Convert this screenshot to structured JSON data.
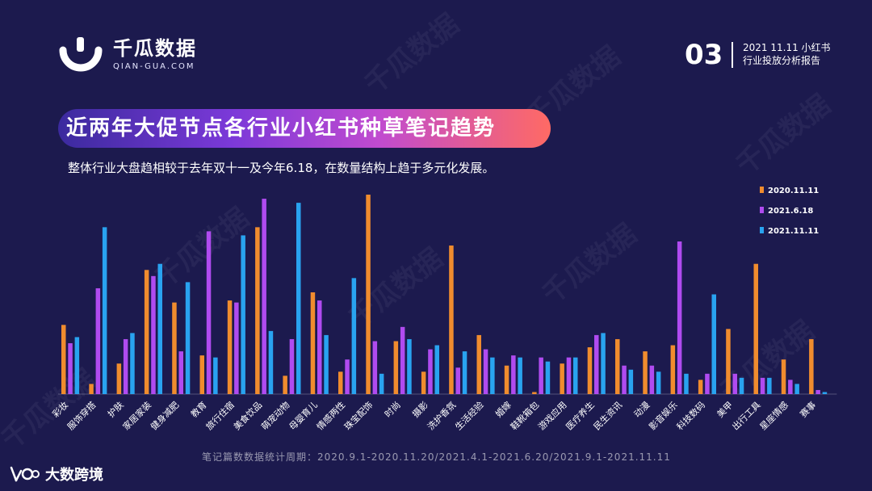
{
  "header": {
    "logo_name": "千瓜数据",
    "logo_url": "QIAN-GUA.COM",
    "page_number": "03",
    "report_title_line1": "2021 11.11 小红书",
    "report_title_line2": "行业投放分析报告"
  },
  "banner": {
    "title": "近两年大促节点各行业小红书种草笔记趋势",
    "subtitle": "整体行业大盘趋相较于去年双十一及今年6.18，在数量结构上趋于多元化发展。"
  },
  "footnote": "笔记篇数数据统计周期：2020.9.1-2020.11.20/2021.4.1-2021.6.20/2021.9.1-2021.11.11",
  "brand": {
    "name": "大数跨境"
  },
  "watermark": "千瓜数据",
  "colors": {
    "s2020": "#f08c2e",
    "s618": "#b04bf0",
    "s2021": "#29a3f0",
    "background": "#1c1a4e"
  },
  "chart_data": {
    "type": "bar",
    "title": "",
    "xlabel": "",
    "ylabel": "",
    "ylim": [
      0,
      100
    ],
    "legend_position": "top-right",
    "categories": [
      "彩妆",
      "服饰穿搭",
      "护肤",
      "家居家装",
      "健身减肥",
      "教育",
      "旅行住宿",
      "美食饮品",
      "萌宠动物",
      "母婴育儿",
      "情感两性",
      "珠宝配饰",
      "时尚",
      "摄影",
      "洗护香氛",
      "生活经验",
      "婚嫁",
      "鞋靴箱包",
      "游戏应用",
      "医疗养生",
      "民生资讯",
      "动漫",
      "影音娱乐",
      "科技数码",
      "美甲",
      "出行工具",
      "星座情感",
      "赛事"
    ],
    "series": [
      {
        "name": "2020.11.11",
        "values": [
          34,
          5,
          15,
          61,
          45,
          19,
          46,
          82,
          9,
          50,
          11,
          98,
          26,
          11,
          73,
          29,
          14,
          1,
          15,
          23,
          27,
          21,
          24,
          7,
          32,
          64,
          17,
          27
        ]
      },
      {
        "name": "2021.6.18",
        "values": [
          25,
          52,
          27,
          58,
          21,
          80,
          45,
          96,
          27,
          46,
          17,
          26,
          33,
          22,
          13,
          22,
          19,
          18,
          18,
          29,
          14,
          14,
          75,
          10,
          10,
          8,
          7,
          2
        ]
      },
      {
        "name": "2021.11.11",
        "values": [
          28,
          82,
          30,
          64,
          55,
          18,
          78,
          31,
          94,
          29,
          57,
          10,
          27,
          24,
          21,
          18,
          18,
          16,
          18,
          30,
          12,
          11,
          10,
          49,
          8,
          8,
          5,
          1
        ]
      }
    ]
  }
}
